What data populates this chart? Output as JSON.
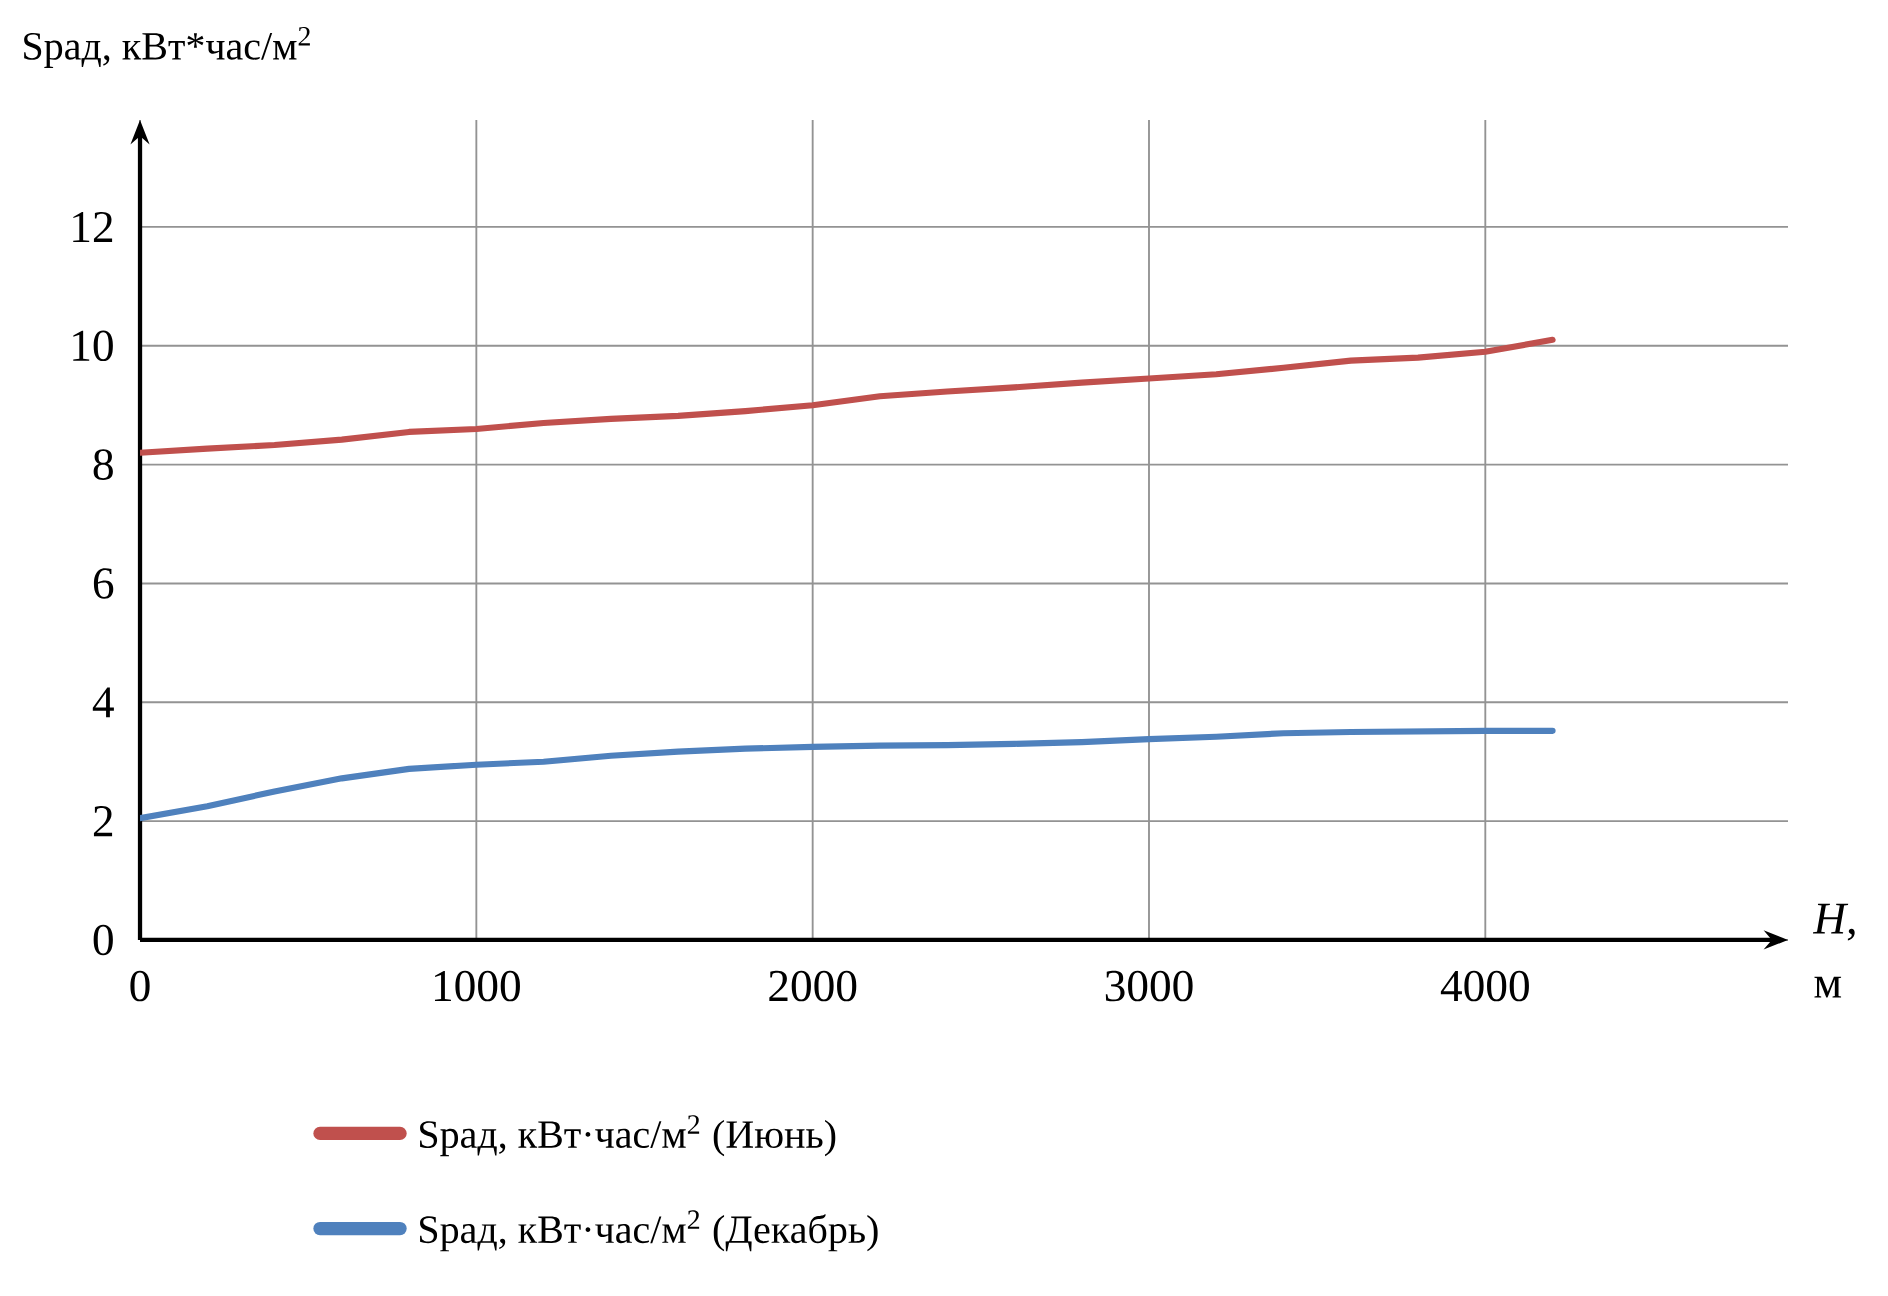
{
  "chart_data": {
    "type": "line",
    "ylabel": "Sрад,    кВт*час/м$^{2}$",
    "xlabel": "*H*, м",
    "xlim": [
      0,
      4900
    ],
    "ylim": [
      0,
      13.8
    ],
    "xticks": [
      0,
      1000,
      2000,
      3000,
      4000
    ],
    "yticks": [
      0,
      2,
      4,
      6,
      8,
      10,
      12
    ],
    "grid": true,
    "legend": "bottom",
    "marker": "none",
    "line_style": "solid",
    "x": [
      0,
      200,
      400,
      600,
      800,
      1000,
      1200,
      1400,
      1600,
      1800,
      2000,
      2200,
      2400,
      2600,
      2800,
      3000,
      3200,
      3400,
      3600,
      3800,
      4000,
      4200
    ],
    "series": [
      {
        "name": "Sрад, кВт·час/м$^{2}$ (Июнь)",
        "color": "#c0504d",
        "values": [
          8.2,
          8.27,
          8.33,
          8.42,
          8.55,
          8.6,
          8.7,
          8.77,
          8.82,
          8.9,
          9.0,
          9.15,
          9.23,
          9.3,
          9.38,
          9.45,
          9.52,
          9.63,
          9.75,
          9.8,
          9.9,
          10.1
        ]
      },
      {
        "name": "Sрад, кВт·час/м$^{2}$ (Декабрь)",
        "color": "#4f81bd",
        "values": [
          2.05,
          2.25,
          2.5,
          2.72,
          2.88,
          2.95,
          3.0,
          3.1,
          3.17,
          3.22,
          3.25,
          3.27,
          3.28,
          3.3,
          3.33,
          3.38,
          3.42,
          3.48,
          3.5,
          3.51,
          3.52,
          3.52
        ]
      }
    ]
  }
}
